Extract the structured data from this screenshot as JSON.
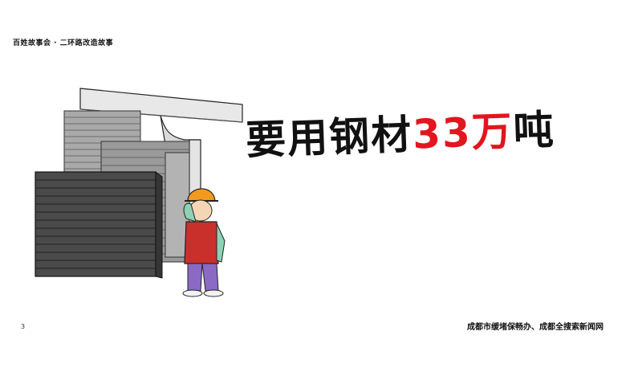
{
  "header": {
    "series_title": "百姓故事会 · 二环路改造故事"
  },
  "headline": {
    "prefix": "要用钢材",
    "number": "33",
    "unit": "万",
    "suffix": "吨"
  },
  "footer": {
    "page_mark": "3",
    "credit": "成都市缓堵保畅办、成都全搜索新闻网"
  },
  "colors": {
    "accent": "#e2161f",
    "text": "#111111",
    "steel_dark": "#4a4a4a",
    "steel_light": "#9a9a9a"
  },
  "illustration": {
    "subject": "worker-with-steel-stack-under-bridge"
  }
}
